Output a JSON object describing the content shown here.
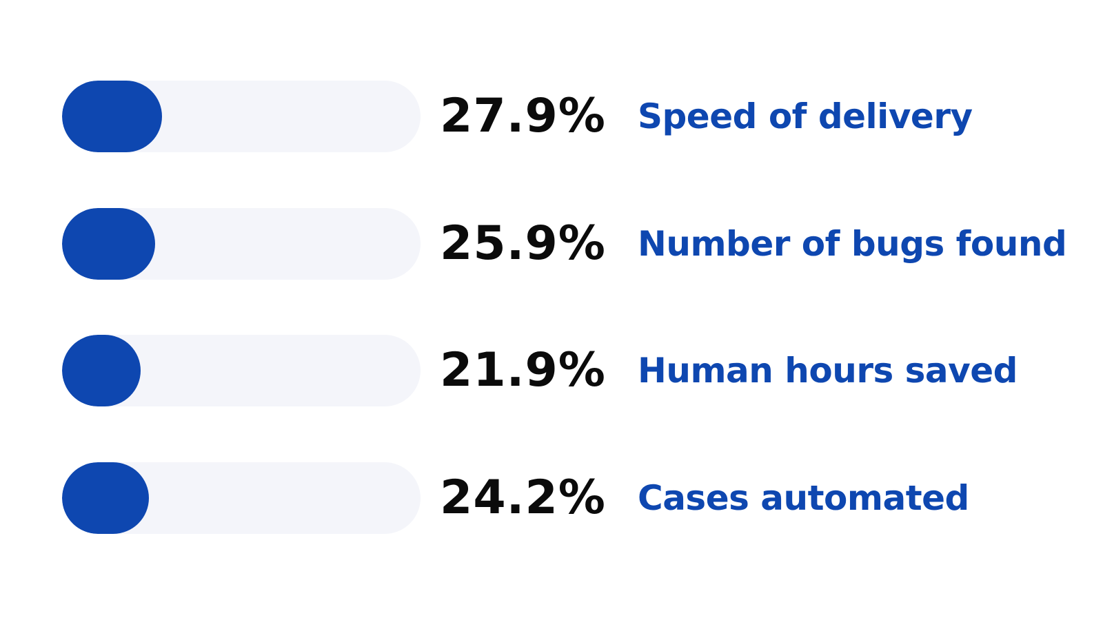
{
  "chart_data": {
    "type": "bar",
    "orientation": "horizontal",
    "title": "",
    "xlabel": "",
    "ylabel": "",
    "categories": [
      "Speed of delivery",
      "Number of bugs found",
      "Human hours saved",
      "Cases automated"
    ],
    "values": [
      27.9,
      25.9,
      21.9,
      24.2
    ],
    "value_labels": [
      "27.9%",
      "25.9%",
      "21.9%",
      "24.2%"
    ],
    "unit": "%",
    "xlim": [
      0,
      100
    ],
    "grid": false,
    "legend": "none"
  },
  "colors": {
    "fill": "#0e47b0",
    "track": "#f4f5fa",
    "value_text": "#0b0b0b",
    "label_text": "#0e47b0",
    "background": "#ffffff"
  }
}
